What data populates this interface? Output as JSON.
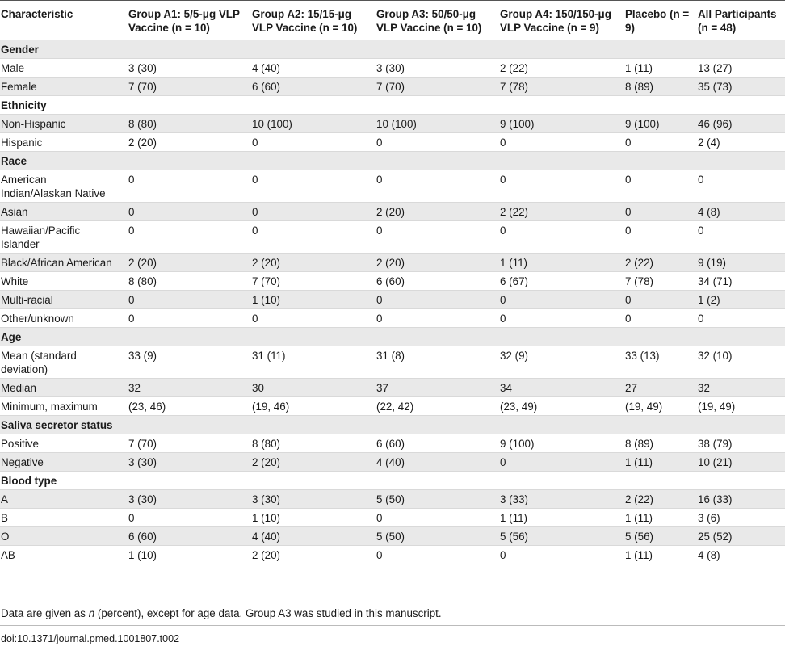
{
  "table": {
    "headers": [
      "Characteristic",
      "Group A1: 5/5-μg VLP Vaccine (n = 10)",
      "Group A2: 15/15-μg VLP Vaccine (n = 10)",
      "Group A3: 50/50-μg VLP Vaccine (n = 10)",
      "Group A4: 150/150-μg VLP Vaccine (n = 9)",
      "Placebo (n = 9)",
      "All Participants (n = 48)"
    ],
    "rows": [
      {
        "type": "section",
        "label": "Gender"
      },
      {
        "type": "data",
        "label": "Male",
        "values": [
          "3 (30)",
          "4 (40)",
          "3 (30)",
          "2 (22)",
          "1 (11)",
          "13 (27)"
        ]
      },
      {
        "type": "data",
        "label": "Female",
        "values": [
          "7 (70)",
          "6 (60)",
          "7 (70)",
          "7 (78)",
          "8 (89)",
          "35 (73)"
        ]
      },
      {
        "type": "section",
        "label": "Ethnicity"
      },
      {
        "type": "data",
        "label": "Non-Hispanic",
        "values": [
          "8 (80)",
          "10 (100)",
          "10 (100)",
          "9 (100)",
          "9 (100)",
          "46 (96)"
        ]
      },
      {
        "type": "data",
        "label": "Hispanic",
        "values": [
          "2 (20)",
          "0",
          "0",
          "0",
          "0",
          "2 (4)"
        ]
      },
      {
        "type": "section",
        "label": "Race"
      },
      {
        "type": "data",
        "label": "American Indian/Alaskan Native",
        "values": [
          "0",
          "0",
          "0",
          "0",
          "0",
          "0"
        ]
      },
      {
        "type": "data",
        "label": "Asian",
        "values": [
          "0",
          "0",
          "2 (20)",
          "2 (22)",
          "0",
          "4 (8)"
        ]
      },
      {
        "type": "data",
        "label": "Hawaiian/Pacific Islander",
        "values": [
          "0",
          "0",
          "0",
          "0",
          "0",
          "0"
        ]
      },
      {
        "type": "data",
        "label": "Black/African American",
        "values": [
          "2 (20)",
          "2 (20)",
          "2 (20)",
          "1 (11)",
          "2 (22)",
          "9 (19)"
        ]
      },
      {
        "type": "data",
        "label": "White",
        "values": [
          "8 (80)",
          "7 (70)",
          "6 (60)",
          "6 (67)",
          "7 (78)",
          "34 (71)"
        ]
      },
      {
        "type": "data",
        "label": "Multi-racial",
        "values": [
          "0",
          "1 (10)",
          "0",
          "0",
          "0",
          "1 (2)"
        ]
      },
      {
        "type": "data",
        "label": "Other/unknown",
        "values": [
          "0",
          "0",
          "0",
          "0",
          "0",
          "0"
        ]
      },
      {
        "type": "section",
        "label": "Age"
      },
      {
        "type": "data",
        "label": "Mean (standard deviation)",
        "values": [
          "33 (9)",
          "31 (11)",
          "31 (8)",
          "32 (9)",
          "33 (13)",
          "32 (10)"
        ]
      },
      {
        "type": "data",
        "label": "Median",
        "values": [
          "32",
          "30",
          "37",
          "34",
          "27",
          "32"
        ]
      },
      {
        "type": "data",
        "label": "Minimum, maximum",
        "values": [
          "(23, 46)",
          "(19, 46)",
          "(22, 42)",
          "(23, 49)",
          "(19, 49)",
          "(19, 49)"
        ]
      },
      {
        "type": "section",
        "label": "Saliva secretor status"
      },
      {
        "type": "data",
        "label": "Positive",
        "values": [
          "7 (70)",
          "8 (80)",
          "6 (60)",
          "9 (100)",
          "8 (89)",
          "38 (79)"
        ]
      },
      {
        "type": "data",
        "label": "Negative",
        "values": [
          "3 (30)",
          "2 (20)",
          "4 (40)",
          "0",
          "1 (11)",
          "10 (21)"
        ]
      },
      {
        "type": "section",
        "label": "Blood type"
      },
      {
        "type": "data",
        "label": "A",
        "values": [
          "3 (30)",
          "3 (30)",
          "5 (50)",
          "3 (33)",
          "2 (22)",
          "16 (33)"
        ]
      },
      {
        "type": "data",
        "label": "B",
        "values": [
          "0",
          "1 (10)",
          "0",
          "1 (11)",
          "1 (11)",
          "3 (6)"
        ]
      },
      {
        "type": "data",
        "label": "O",
        "values": [
          "6 (60)",
          "4 (40)",
          "5 (50)",
          "5 (56)",
          "5 (56)",
          "25 (52)"
        ]
      },
      {
        "type": "data",
        "label": "AB",
        "values": [
          "1 (10)",
          "2 (20)",
          "0",
          "0",
          "1 (11)",
          "4 (8)"
        ]
      }
    ]
  },
  "footnote": {
    "before": "Data are given as ",
    "italic": "n",
    "after": " (percent), except for age data. Group A3 was studied in this manuscript."
  },
  "doi": "doi:10.1371/journal.pmed.1001807.t002"
}
